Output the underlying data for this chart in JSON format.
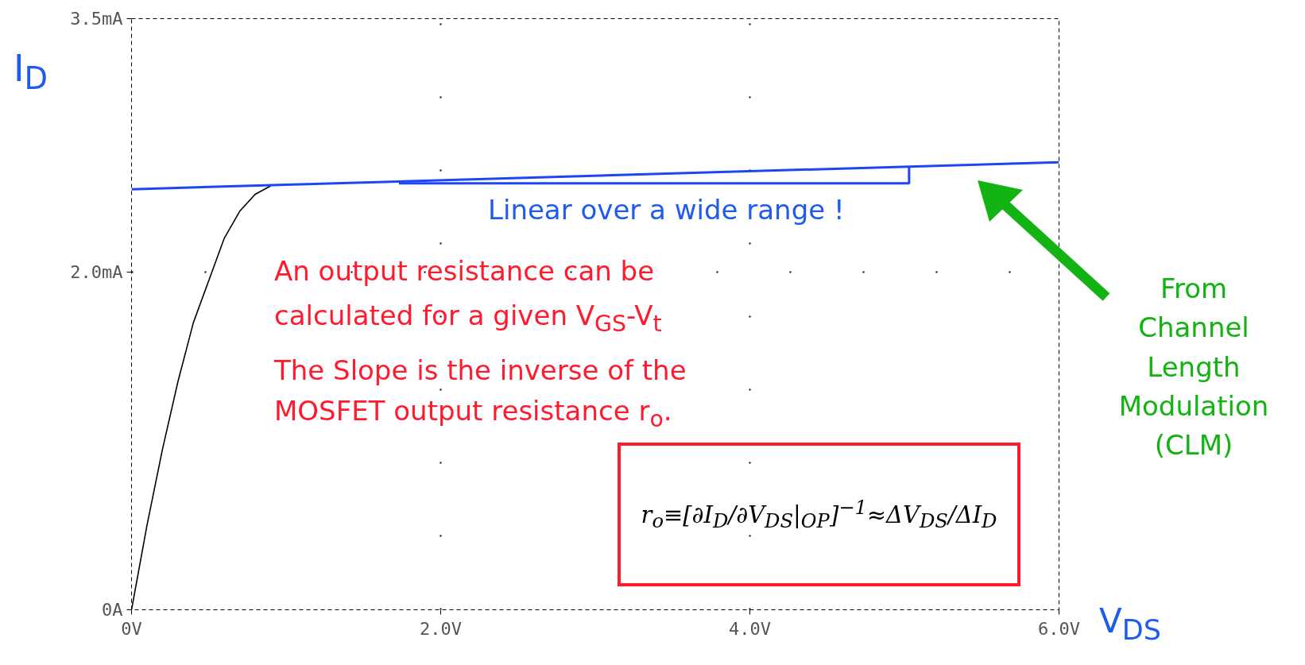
{
  "chart_data": {
    "type": "line",
    "xlabel": "V$_{DS}$",
    "ylabel": "I$_{D}$",
    "xlim": [
      0,
      6
    ],
    "ylim": [
      0,
      3.5
    ],
    "xticks": [
      {
        "value": 0,
        "label": "0V"
      },
      {
        "value": 2,
        "label": "2.0V"
      },
      {
        "value": 4,
        "label": "4.0V"
      },
      {
        "value": 6,
        "label": "6.0V"
      }
    ],
    "yticks": [
      {
        "value": 0,
        "label": "0A"
      },
      {
        "value": 2,
        "label": "2.0mA"
      },
      {
        "value": 3.5,
        "label": "3.5mA"
      }
    ],
    "grid": true,
    "marker": "none",
    "line_style": "solid",
    "series": [
      {
        "color": "#000000",
        "x": [
          0,
          0.1,
          0.2,
          0.3,
          0.4,
          0.5,
          0.6,
          0.7,
          0.8,
          0.9
        ],
        "values": [
          0,
          0.5,
          0.95,
          1.35,
          1.7,
          1.95,
          2.2,
          2.36,
          2.46,
          2.51
        ]
      },
      {
        "color": "#1e46f5",
        "x": [
          0,
          6
        ],
        "values": [
          2.49,
          2.65
        ]
      }
    ],
    "annotations": [
      "Linear over a wide range !",
      "An output resistance can be\ncalculated for a given V$_{GS}$-V$_{t}$",
      "The Slope is the inverse of the\nMOSFET output resistance r$_{o}$.",
      "From\nChannel\nLength\nModulation\n(CLM)",
      "r$_{o}$≡[∂I$_{D}$/∂V$_{DS}$|$_{OP}$]$^{−1}$≈ΔV$_{DS}$/ΔI$_{D}$"
    ]
  }
}
